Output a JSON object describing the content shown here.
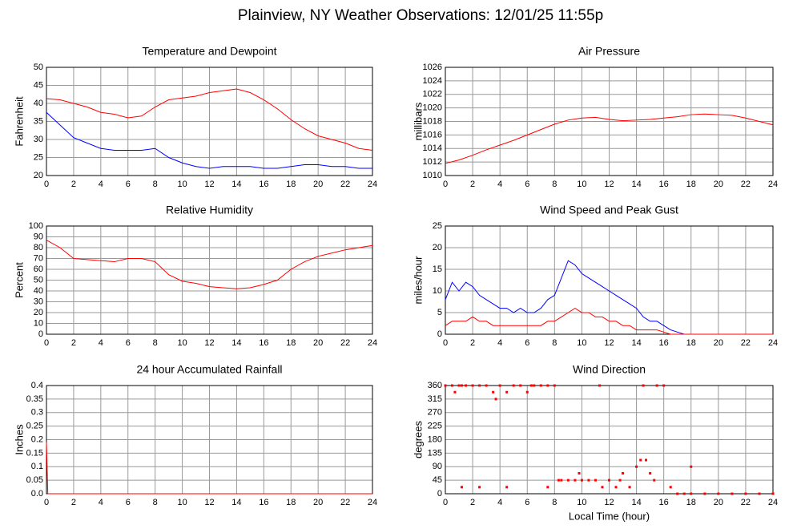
{
  "title": "Plainview, NY Weather Observations: 12/01/25 11:55p",
  "chart_data": [
    {
      "type": "line",
      "title": "Temperature and Dewpoint",
      "y_label": "Fahrenheit",
      "x": [
        0,
        1,
        2,
        3,
        4,
        5,
        6,
        7,
        8,
        9,
        10,
        11,
        12,
        13,
        14,
        15,
        16,
        17,
        18,
        19,
        20,
        21,
        22,
        23,
        24
      ],
      "series": [
        {
          "color": "#ff0000",
          "values": [
            41.3,
            41,
            40,
            39,
            37.5,
            37,
            36,
            36.5,
            39,
            41,
            41.5,
            42,
            43,
            43.5,
            44,
            43,
            41,
            38.5,
            35.5,
            33,
            31,
            30,
            29,
            27.5,
            27
          ]
        },
        {
          "color": "#0000ff",
          "values": [
            37.5,
            34,
            30.5,
            29,
            27.5,
            27,
            27,
            27,
            27.5,
            25,
            23.5,
            22.5,
            22,
            22.5,
            22.5,
            22.5,
            22,
            22,
            22.5,
            23,
            23,
            22.5,
            22.5,
            22,
            22
          ]
        }
      ],
      "xlim": [
        0,
        24
      ],
      "xticks": [
        0,
        2,
        4,
        6,
        8,
        10,
        12,
        14,
        16,
        18,
        20,
        22,
        24
      ],
      "ylim": [
        20,
        50
      ],
      "yticks": [
        20,
        25,
        30,
        35,
        40,
        45,
        50
      ],
      "grid": true
    },
    {
      "type": "line",
      "title": "Air Pressure",
      "y_label": "millibars",
      "x": [
        0,
        1,
        2,
        3,
        4,
        5,
        6,
        7,
        8,
        9,
        10,
        11,
        12,
        13,
        14,
        15,
        16,
        17,
        18,
        19,
        20,
        21,
        22,
        23,
        24
      ],
      "series": [
        {
          "color": "#ff0000",
          "values": [
            1011.8,
            1012.3,
            1013,
            1013.8,
            1014.5,
            1015.2,
            1016,
            1016.8,
            1017.6,
            1018.2,
            1018.5,
            1018.6,
            1018.3,
            1018.1,
            1018.2,
            1018.3,
            1018.5,
            1018.7,
            1019,
            1019.1,
            1019,
            1018.9,
            1018.5,
            1018,
            1017.5
          ]
        }
      ],
      "xlim": [
        0,
        24
      ],
      "xticks": [
        0,
        2,
        4,
        6,
        8,
        10,
        12,
        14,
        16,
        18,
        20,
        22,
        24
      ],
      "ylim": [
        1010,
        1026
      ],
      "yticks": [
        1010,
        1012,
        1014,
        1016,
        1018,
        1020,
        1022,
        1024,
        1026
      ],
      "grid": true
    },
    {
      "type": "line",
      "title": "Relative Humidity",
      "y_label": "Percent",
      "x": [
        0,
        1,
        2,
        3,
        4,
        5,
        6,
        7,
        8,
        9,
        10,
        11,
        12,
        13,
        14,
        15,
        16,
        17,
        18,
        19,
        20,
        21,
        22,
        23,
        24
      ],
      "series": [
        {
          "color": "#ff0000",
          "values": [
            87,
            80,
            70,
            69,
            68,
            67,
            70,
            70,
            67,
            55,
            49,
            47,
            44,
            43,
            42,
            43,
            46,
            50,
            60,
            67,
            72,
            75,
            78,
            80,
            82
          ]
        }
      ],
      "xlim": [
        0,
        24
      ],
      "xticks": [
        0,
        2,
        4,
        6,
        8,
        10,
        12,
        14,
        16,
        18,
        20,
        22,
        24
      ],
      "ylim": [
        0,
        100
      ],
      "yticks": [
        0,
        10,
        20,
        30,
        40,
        50,
        60,
        70,
        80,
        90,
        100
      ],
      "grid": true
    },
    {
      "type": "line",
      "title": "Wind Speed and Peak Gust",
      "y_label": "miles/hour",
      "x": [
        0,
        0.5,
        1,
        1.5,
        2,
        2.5,
        3,
        3.5,
        4,
        4.5,
        5,
        5.5,
        6,
        6.5,
        7,
        7.5,
        8,
        8.5,
        9,
        9.5,
        10,
        10.5,
        11,
        11.5,
        12,
        12.5,
        13,
        13.5,
        14,
        14.5,
        15,
        15.5,
        16,
        16.5,
        17,
        17.5,
        18,
        19,
        20,
        21,
        22,
        23,
        24
      ],
      "series": [
        {
          "color": "#0000ff",
          "values": [
            8,
            12,
            10,
            12,
            11,
            9,
            8,
            7,
            6,
            6,
            5,
            6,
            5,
            5,
            6,
            8,
            9,
            13,
            17,
            16,
            14,
            13,
            12,
            11,
            10,
            9,
            8,
            7,
            6,
            4,
            3,
            3,
            2,
            1,
            0.5,
            0,
            0,
            0,
            0,
            0,
            0,
            0,
            0
          ]
        },
        {
          "color": "#ff0000",
          "values": [
            2,
            3,
            3,
            3,
            4,
            3,
            3,
            2,
            2,
            2,
            2,
            2,
            2,
            2,
            2,
            3,
            3,
            4,
            5,
            6,
            5,
            5,
            4,
            4,
            3,
            3,
            2,
            2,
            1,
            1,
            1,
            1,
            0.5,
            0,
            0,
            0,
            0,
            0,
            0,
            0,
            0,
            0,
            0
          ]
        }
      ],
      "xlim": [
        0,
        24
      ],
      "xticks": [
        0,
        2,
        4,
        6,
        8,
        10,
        12,
        14,
        16,
        18,
        20,
        22,
        24
      ],
      "ylim": [
        0,
        25
      ],
      "yticks": [
        0,
        5,
        10,
        15,
        20,
        25
      ],
      "grid": true
    },
    {
      "type": "line",
      "title": "24 hour Accumulated Rainfall",
      "y_label": "Inches",
      "x": [
        0,
        0.1,
        24
      ],
      "series": [
        {
          "color": "#ff0000",
          "values": [
            0.19,
            0,
            0
          ]
        }
      ],
      "xlim": [
        0,
        24
      ],
      "xticks": [
        0,
        2,
        4,
        6,
        8,
        10,
        12,
        14,
        16,
        18,
        20,
        22,
        24
      ],
      "ylim": [
        0,
        0.4
      ],
      "yticks": [
        {
          "value": 0,
          "label": "0.0"
        },
        0.05,
        0.1,
        0.15,
        0.2,
        0.25,
        0.3,
        0.35,
        0.4
      ],
      "grid": true
    },
    {
      "type": "scatter",
      "title": "Wind Direction",
      "y_label": "degrees",
      "x_label": "Local Time (hour)",
      "x": [
        0,
        0.5,
        0.7,
        1,
        1.2,
        1.5,
        2,
        2.5,
        3,
        3.5,
        3.7,
        4,
        4.5,
        5,
        5.5,
        6,
        6.3,
        6.5,
        7,
        7.5,
        8,
        8.5,
        9,
        9.5,
        10,
        10.5,
        11,
        11.3,
        11.5,
        12,
        12.5,
        13,
        13.5,
        14,
        14.3,
        14.5,
        15,
        15.5,
        16,
        16.5,
        17,
        17.5,
        18,
        19,
        20,
        21,
        22,
        23,
        24,
        1.2,
        2.5,
        4.5,
        7.5,
        8.3,
        9.8,
        12.8,
        14.7,
        15.3,
        18
      ],
      "series": [
        {
          "color": "#ff0000",
          "values": [
            360,
            360,
            338,
            360,
            360,
            360,
            360,
            360,
            360,
            338,
            315,
            360,
            338,
            360,
            360,
            338,
            360,
            360,
            360,
            360,
            360,
            45,
            45,
            45,
            45,
            45,
            45,
            360,
            22,
            45,
            22,
            68,
            22,
            90,
            112,
            360,
            68,
            360,
            360,
            22,
            0,
            0,
            0,
            0,
            0,
            0,
            0,
            0,
            0,
            22,
            22,
            22,
            22,
            45,
            68,
            45,
            112,
            45,
            90
          ]
        }
      ],
      "xlim": [
        0,
        24
      ],
      "xticks": [
        0,
        2,
        4,
        6,
        8,
        10,
        12,
        14,
        16,
        18,
        20,
        22,
        24
      ],
      "ylim": [
        0,
        360
      ],
      "yticks": [
        0,
        45,
        90,
        135,
        180,
        225,
        270,
        315,
        360
      ],
      "grid": true
    }
  ]
}
